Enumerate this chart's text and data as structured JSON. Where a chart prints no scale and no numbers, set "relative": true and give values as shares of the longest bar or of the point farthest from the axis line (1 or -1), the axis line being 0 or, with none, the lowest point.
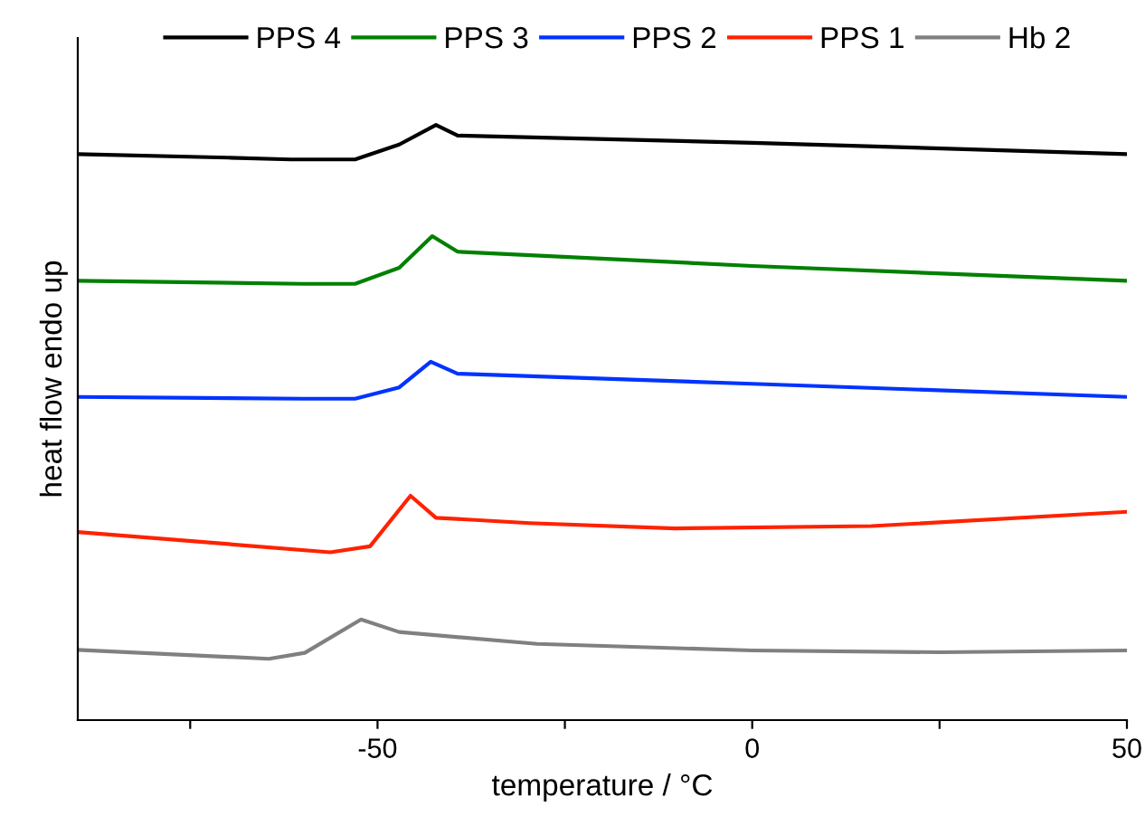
{
  "chart_data": {
    "type": "line",
    "xlabel": "temperature / °C",
    "ylabel": "heat flow endo up",
    "relative": true,
    "xlim": [
      -90,
      50
    ],
    "xticks": [
      {
        "value": -75,
        "label": null
      },
      -50,
      {
        "value": -25,
        "label": null
      },
      0,
      {
        "value": 25,
        "label": null
      },
      50
    ],
    "legend": "top",
    "grid": false,
    "marker": "none",
    "line_style": "solid",
    "series": [
      {
        "name": "PPS 4",
        "color": "#000000",
        "x": [
          -90,
          -70,
          -61.6,
          -53,
          -47.1,
          -42.2,
          -39.3,
          0,
          50
        ],
        "values": [
          0.951,
          0.945,
          0.942,
          0.942,
          0.967,
          1.0,
          0.982,
          0.97,
          0.951
        ]
      },
      {
        "name": "PPS 3",
        "color": "#008000",
        "x": [
          -90,
          -60,
          -53,
          -47.1,
          -42.7,
          -39.3,
          0,
          50
        ],
        "values": [
          0.738,
          0.733,
          0.733,
          0.76,
          0.813,
          0.787,
          0.763,
          0.738
        ]
      },
      {
        "name": "PPS 2",
        "color": "#0033ff",
        "x": [
          -90,
          -60,
          -53,
          -47.1,
          -42.9,
          -39.3,
          0,
          50
        ],
        "values": [
          0.543,
          0.54,
          0.54,
          0.559,
          0.602,
          0.582,
          0.565,
          0.543
        ]
      },
      {
        "name": "PPS 1",
        "color": "#ff2200",
        "x": [
          -90,
          -56.3,
          -51,
          -45.6,
          -42.2,
          -29.7,
          -10.3,
          15.9,
          50
        ],
        "values": [
          0.316,
          0.282,
          0.292,
          0.377,
          0.34,
          0.331,
          0.322,
          0.326,
          0.35
        ]
      },
      {
        "name": "Hb 2",
        "color": "#808080",
        "x": [
          -90,
          -64.5,
          -59.7,
          -52.2,
          -47.1,
          -28.7,
          0,
          25,
          50
        ],
        "values": [
          0.118,
          0.103,
          0.113,
          0.169,
          0.148,
          0.128,
          0.117,
          0.114,
          0.117
        ]
      }
    ]
  }
}
